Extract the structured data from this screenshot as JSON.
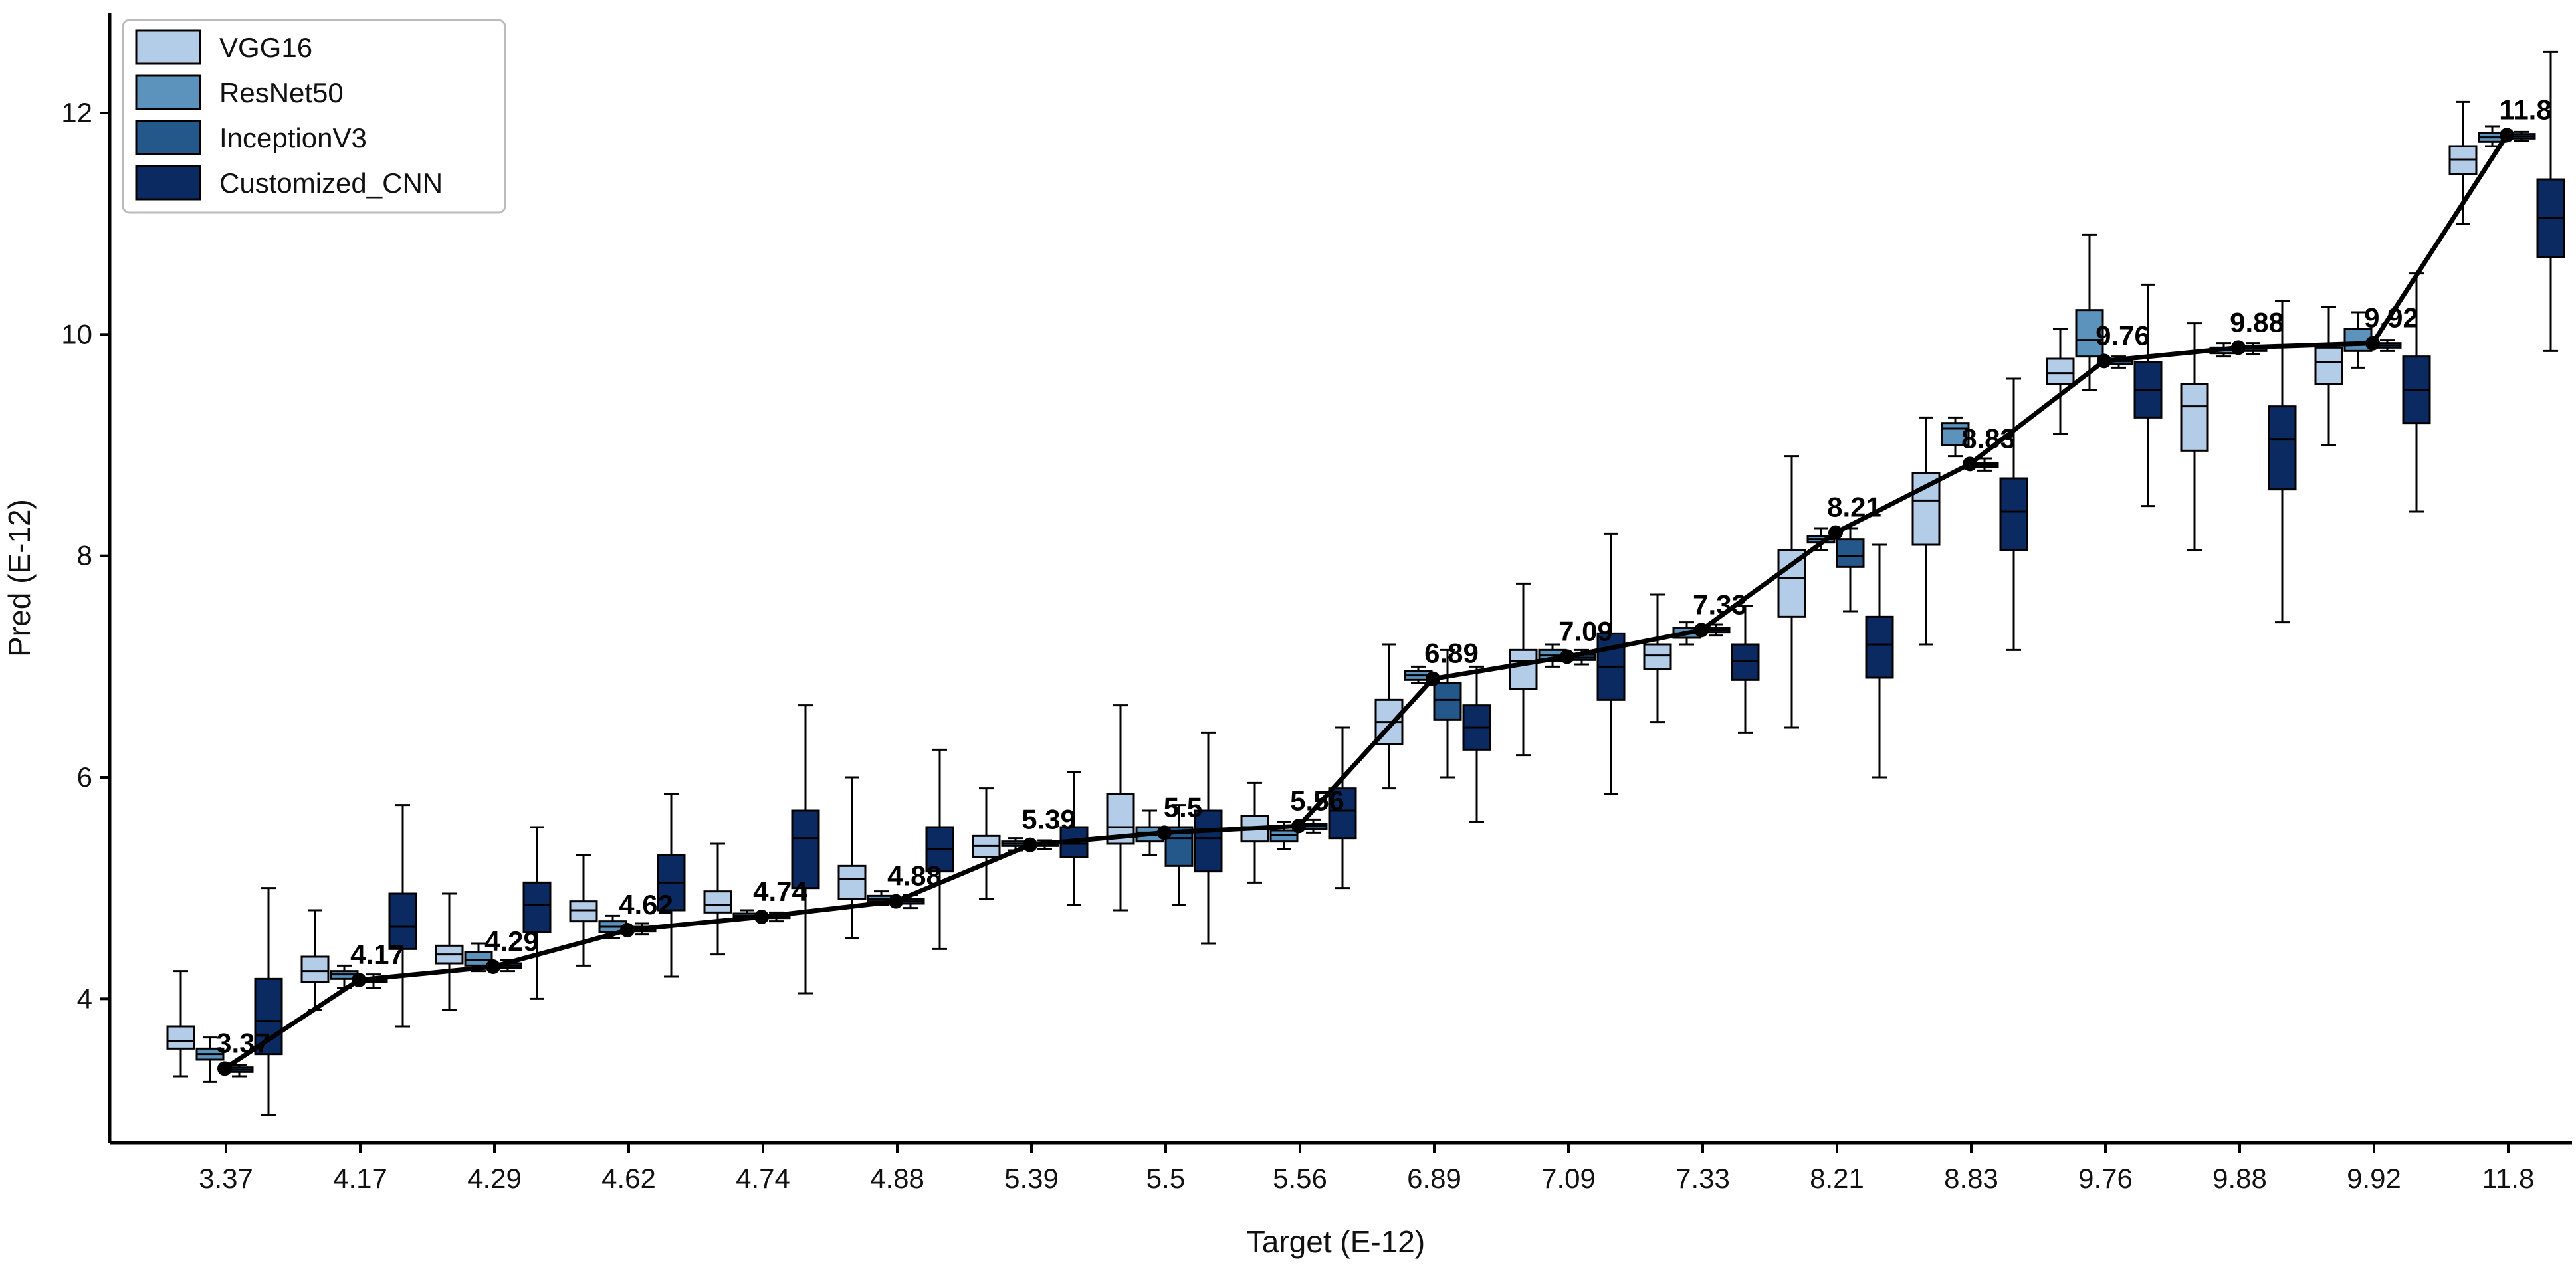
{
  "chart_data": {
    "type": "box",
    "title": "",
    "xlabel": "Target (E-12)",
    "ylabel": "Pred (E-12)",
    "ylim": [
      2.7,
      12.9
    ],
    "yticks": [
      "4",
      "6",
      "8",
      "10",
      "12"
    ],
    "categories": [
      "3.37",
      "4.17",
      "4.29",
      "4.62",
      "4.74",
      "4.88",
      "5.39",
      "5.5",
      "5.56",
      "6.89",
      "7.09",
      "7.33",
      "8.21",
      "8.83",
      "9.76",
      "9.88",
      "9.92",
      "11.8"
    ],
    "target_values": [
      3.37,
      4.17,
      4.29,
      4.62,
      4.74,
      4.88,
      5.39,
      5.5,
      5.56,
      6.89,
      7.09,
      7.33,
      8.21,
      8.83,
      9.76,
      9.88,
      9.92,
      11.8
    ],
    "target_labels": [
      "3.37",
      "4.17",
      "4.29",
      "4.62",
      "4.74",
      "4.88",
      "5.39",
      "5.5",
      "5.56",
      "6.89",
      "7.09",
      "7.33",
      "8.21",
      "8.83",
      "9.76",
      "9.88",
      "9.92",
      "11.8"
    ],
    "colors": {
      "VGG16": "#b3cde8",
      "ResNet50": "#5b93bd",
      "InceptionV3": "#25588a",
      "Customized_CNN": "#0b2a62"
    },
    "legend": [
      "VGG16",
      "ResNet50",
      "InceptionV3",
      "Customized_CNN"
    ],
    "legend_position": "top-left",
    "series": [
      {
        "name": "VGG16",
        "boxes": [
          [
            3.3,
            3.55,
            3.62,
            3.75,
            4.25
          ],
          [
            3.9,
            4.15,
            4.25,
            4.38,
            4.8
          ],
          [
            3.9,
            4.32,
            4.4,
            4.48,
            4.95
          ],
          [
            4.3,
            4.7,
            4.8,
            4.88,
            5.3
          ],
          [
            4.4,
            4.78,
            4.85,
            4.97,
            5.4
          ],
          [
            4.55,
            4.9,
            5.08,
            5.2,
            6.0
          ],
          [
            4.9,
            5.28,
            5.38,
            5.47,
            5.9
          ],
          [
            4.8,
            5.4,
            5.55,
            5.85,
            6.65
          ],
          [
            5.05,
            5.42,
            5.55,
            5.65,
            5.95
          ],
          [
            5.9,
            6.3,
            6.5,
            6.7,
            7.2
          ],
          [
            6.2,
            6.8,
            7.05,
            7.15,
            7.75
          ],
          [
            6.5,
            6.98,
            7.1,
            7.2,
            7.65
          ],
          [
            6.45,
            7.45,
            7.8,
            8.05,
            8.9
          ],
          [
            7.2,
            8.1,
            8.5,
            8.75,
            9.25
          ],
          [
            9.1,
            9.55,
            9.65,
            9.78,
            10.05
          ],
          [
            8.05,
            8.95,
            9.35,
            9.55,
            10.1
          ],
          [
            9.0,
            9.55,
            9.75,
            9.88,
            10.25
          ],
          [
            11.0,
            11.45,
            11.58,
            11.7,
            12.1
          ]
        ]
      },
      {
        "name": "ResNet50",
        "boxes": [
          [
            3.25,
            3.45,
            3.5,
            3.55,
            3.65
          ],
          [
            4.1,
            4.18,
            4.22,
            4.25,
            4.3
          ],
          [
            4.25,
            4.3,
            4.35,
            4.42,
            4.5
          ],
          [
            4.55,
            4.6,
            4.65,
            4.7,
            4.75
          ],
          [
            4.72,
            4.74,
            4.75,
            4.77,
            4.8
          ],
          [
            4.85,
            4.88,
            4.9,
            4.93,
            4.97
          ],
          [
            5.34,
            5.38,
            5.4,
            5.42,
            5.45
          ],
          [
            5.3,
            5.42,
            5.5,
            5.55,
            5.7
          ],
          [
            5.35,
            5.42,
            5.48,
            5.52,
            5.6
          ],
          [
            6.85,
            6.88,
            6.92,
            6.96,
            7.0
          ],
          [
            7.0,
            7.05,
            7.1,
            7.15,
            7.2
          ],
          [
            7.2,
            7.26,
            7.3,
            7.35,
            7.4
          ],
          [
            8.05,
            8.12,
            8.15,
            8.18,
            8.25
          ],
          [
            8.9,
            9.0,
            9.15,
            9.2,
            9.25
          ],
          [
            9.5,
            9.8,
            9.95,
            10.22,
            10.9
          ],
          [
            9.8,
            9.83,
            9.86,
            9.88,
            9.92
          ],
          [
            9.7,
            9.85,
            9.92,
            10.05,
            10.2
          ],
          [
            11.7,
            11.74,
            11.78,
            11.82,
            11.88
          ]
        ]
      },
      {
        "name": "InceptionV3",
        "boxes": [
          [
            3.3,
            3.34,
            3.36,
            3.38,
            3.4
          ],
          [
            4.1,
            4.15,
            4.17,
            4.19,
            4.22
          ],
          [
            4.25,
            4.28,
            4.3,
            4.32,
            4.35
          ],
          [
            4.58,
            4.61,
            4.63,
            4.65,
            4.68
          ],
          [
            4.7,
            4.73,
            4.74,
            4.76,
            4.78
          ],
          [
            4.82,
            4.86,
            4.88,
            4.9,
            4.94
          ],
          [
            5.35,
            5.38,
            5.39,
            5.41,
            5.43
          ],
          [
            4.85,
            5.2,
            5.45,
            5.55,
            5.75
          ],
          [
            5.5,
            5.53,
            5.56,
            5.58,
            5.62
          ],
          [
            6.0,
            6.52,
            6.7,
            6.85,
            7.15
          ],
          [
            7.02,
            7.06,
            7.08,
            7.11,
            7.15
          ],
          [
            7.28,
            7.31,
            7.33,
            7.35,
            7.38
          ],
          [
            7.5,
            7.9,
            8.0,
            8.15,
            8.25
          ],
          [
            8.77,
            8.8,
            8.82,
            8.84,
            8.88
          ],
          [
            9.7,
            9.73,
            9.76,
            9.78,
            9.8
          ],
          [
            9.82,
            9.85,
            9.87,
            9.89,
            9.92
          ],
          [
            9.85,
            9.88,
            9.9,
            9.92,
            9.95
          ],
          [
            11.75,
            11.77,
            11.79,
            11.81,
            11.83
          ]
        ]
      },
      {
        "name": "Customized_CNN",
        "boxes": [
          [
            2.95,
            3.5,
            3.8,
            4.18,
            5.0
          ],
          [
            3.75,
            4.45,
            4.65,
            4.95,
            5.75
          ],
          [
            4.0,
            4.6,
            4.85,
            5.05,
            5.55
          ],
          [
            4.2,
            4.8,
            5.05,
            5.3,
            5.85
          ],
          [
            4.05,
            5.0,
            5.45,
            5.7,
            6.65
          ],
          [
            4.45,
            5.15,
            5.35,
            5.55,
            6.25
          ],
          [
            4.85,
            5.28,
            5.4,
            5.55,
            6.05
          ],
          [
            4.5,
            5.15,
            5.45,
            5.7,
            6.4
          ],
          [
            5.0,
            5.45,
            5.7,
            5.9,
            6.45
          ],
          [
            5.6,
            6.25,
            6.45,
            6.65,
            7.0
          ],
          [
            5.85,
            6.7,
            7.0,
            7.3,
            8.2
          ],
          [
            6.4,
            6.88,
            7.05,
            7.2,
            7.55
          ],
          [
            6.0,
            6.9,
            7.2,
            7.45,
            8.1
          ],
          [
            7.15,
            8.05,
            8.4,
            8.7,
            9.6
          ],
          [
            8.45,
            9.25,
            9.5,
            9.75,
            10.45
          ],
          [
            7.4,
            8.6,
            9.05,
            9.35,
            10.3
          ],
          [
            8.4,
            9.2,
            9.5,
            9.8,
            10.55
          ],
          [
            9.85,
            10.7,
            11.05,
            11.4,
            12.55
          ]
        ]
      }
    ]
  }
}
